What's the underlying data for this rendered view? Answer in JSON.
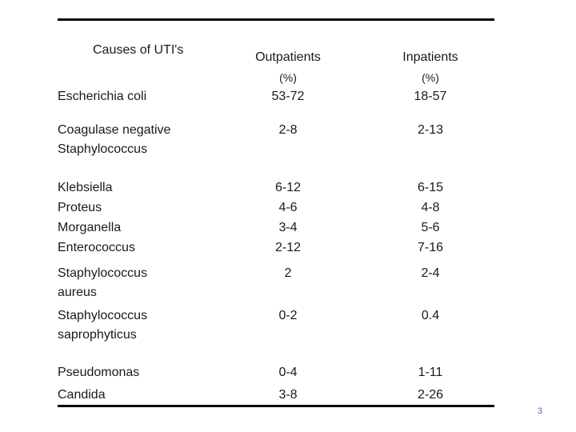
{
  "table": {
    "header": {
      "causes_label": "Causes of UTI's",
      "outpatients": "Outpatients",
      "outpatients_unit": "(%)",
      "inpatients": "Inpatients",
      "inpatients_unit": "(%)"
    },
    "rows": [
      {
        "organism": [
          "Escherichia coli"
        ],
        "outpatients": [
          "53-72"
        ],
        "inpatients": [
          "18-57"
        ]
      },
      {
        "organism": [
          "Coagulase negative",
          "Staphylococcus"
        ],
        "outpatients": [
          "2-8"
        ],
        "inpatients": [
          "2-13"
        ]
      },
      {
        "organism": [
          "Klebsiella",
          "Proteus",
          "Morganella",
          "Enterococcus"
        ],
        "outpatients": [
          "6-12",
          "4-6",
          "3-4",
          "2-12"
        ],
        "inpatients": [
          "6-15",
          "4-8",
          "5-6",
          "7-16"
        ]
      },
      {
        "organism": [
          "Staphylococcus",
          "aureus"
        ],
        "outpatients": [
          "2"
        ],
        "inpatients": [
          "2-4"
        ]
      },
      {
        "organism": [
          "Staphylococcus",
          " saprophyticus"
        ],
        "outpatients": [
          "0-2"
        ],
        "inpatients": [
          "0.4"
        ]
      },
      {
        "organism": [
          "Pseudomonas",
          "Candida"
        ],
        "outpatients": [
          "0-4",
          "3-8"
        ],
        "inpatients": [
          "1-11",
          "2-26"
        ]
      }
    ]
  },
  "page_number": "3"
}
